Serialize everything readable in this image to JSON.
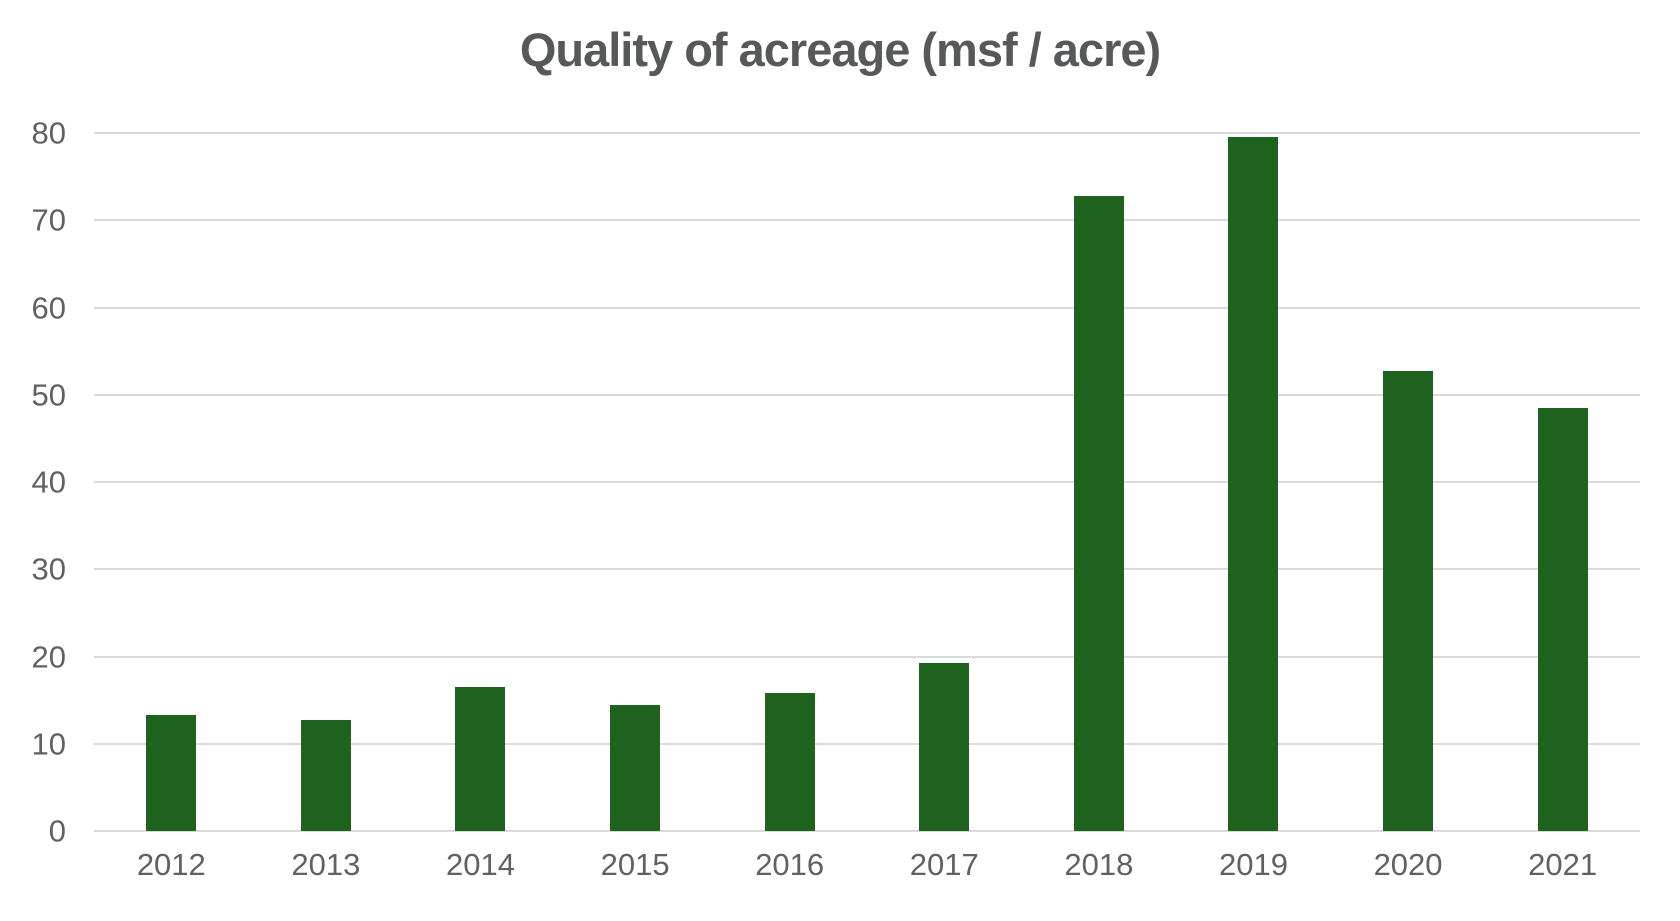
{
  "chart_data": {
    "type": "bar",
    "title": "Quality of acreage (msf / acre)",
    "categories": [
      "2012",
      "2013",
      "2014",
      "2015",
      "2016",
      "2017",
      "2018",
      "2019",
      "2020",
      "2021"
    ],
    "values": [
      13.3,
      12.7,
      16.5,
      14.5,
      15.8,
      19.3,
      72.8,
      79.5,
      52.7,
      48.5
    ],
    "xlabel": "",
    "ylabel": "",
    "ylim": [
      0,
      80
    ],
    "yticks": [
      0,
      10,
      20,
      30,
      40,
      50,
      60,
      70,
      80
    ],
    "grid": "horizontal",
    "legend": "none",
    "bar_color": "#1e621e",
    "gridline_color": "#d9d9d9",
    "title_color": "#57585a",
    "axis_label_color": "#616161",
    "background_color": "#ffffff"
  }
}
